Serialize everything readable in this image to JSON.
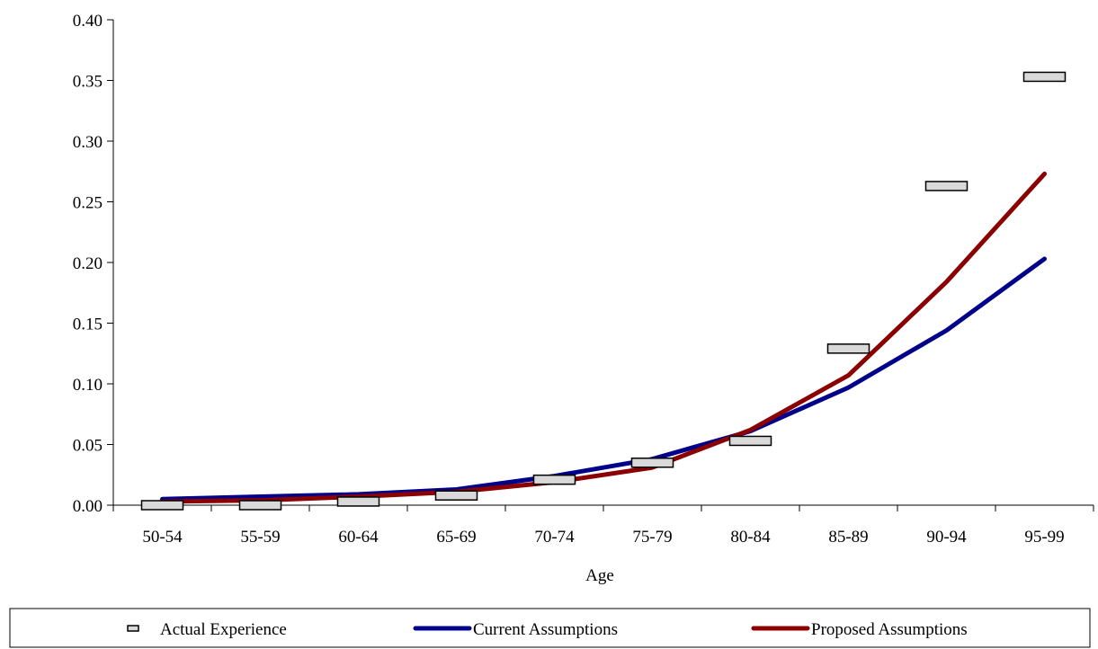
{
  "chart_data": {
    "type": "line",
    "title": "",
    "xlabel": "Age",
    "ylabel": "",
    "categories": [
      "50-54",
      "55-59",
      "60-64",
      "65-69",
      "70-74",
      "75-79",
      "80-84",
      "85-89",
      "90-94",
      "95-99"
    ],
    "y_ticks": [
      "0.00",
      "0.05",
      "0.10",
      "0.15",
      "0.20",
      "0.25",
      "0.30",
      "0.35",
      "0.40"
    ],
    "ylim": [
      0,
      0.4
    ],
    "grid": false,
    "legend_position": "bottom",
    "series": [
      {
        "name": "Actual Experience",
        "style": "markers",
        "color": "#d9d9d9",
        "values": [
          0.0,
          0.0,
          0.003,
          0.008,
          0.021,
          0.035,
          0.053,
          0.129,
          0.263,
          0.353
        ]
      },
      {
        "name": "Current Assumptions",
        "style": "line",
        "color": "#00008b",
        "values": [
          0.005,
          0.007,
          0.009,
          0.013,
          0.024,
          0.038,
          0.061,
          0.097,
          0.144,
          0.203
        ]
      },
      {
        "name": "Proposed Assumptions",
        "style": "line",
        "color": "#8b0000",
        "values": [
          0.003,
          0.004,
          0.007,
          0.011,
          0.019,
          0.031,
          0.062,
          0.107,
          0.184,
          0.273
        ]
      }
    ]
  }
}
